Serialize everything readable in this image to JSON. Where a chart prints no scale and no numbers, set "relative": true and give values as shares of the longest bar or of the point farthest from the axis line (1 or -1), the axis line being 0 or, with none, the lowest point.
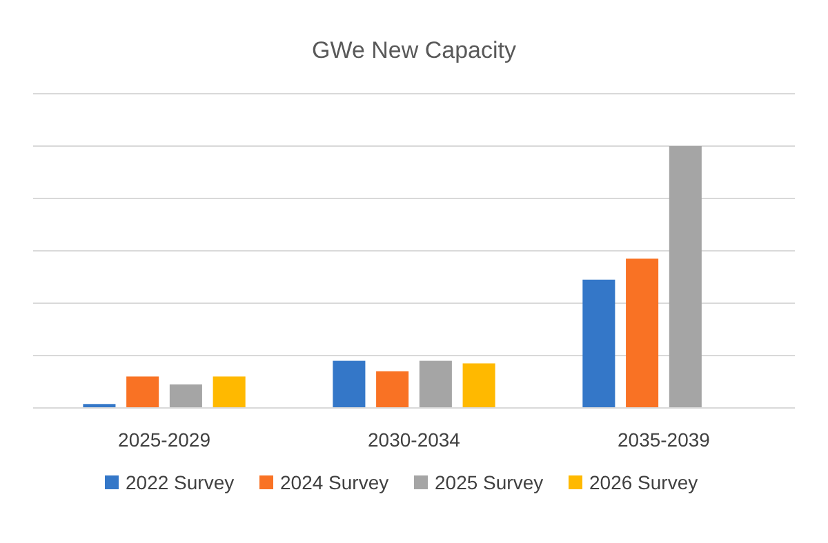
{
  "chart_data": {
    "type": "bar",
    "title": "GWe New Capacity",
    "relative": true,
    "grid": true,
    "legend": "bottom",
    "categories": [
      "2025-2029",
      "2030-2034",
      "2035-2039"
    ],
    "series": [
      {
        "name": "2022 Survey",
        "color": "#3477c8",
        "values": [
          0.015,
          0.18,
          0.49
        ]
      },
      {
        "name": "2024 Survey",
        "color": "#f97224",
        "values": [
          0.12,
          0.14,
          0.57
        ]
      },
      {
        "name": "2025 Survey",
        "color": "#a5a5a5",
        "values": [
          0.09,
          0.18,
          1
        ]
      },
      {
        "name": "2026 Survey",
        "color": "#ffb900",
        "values": [
          0.12,
          0.17,
          null
        ]
      }
    ]
  }
}
